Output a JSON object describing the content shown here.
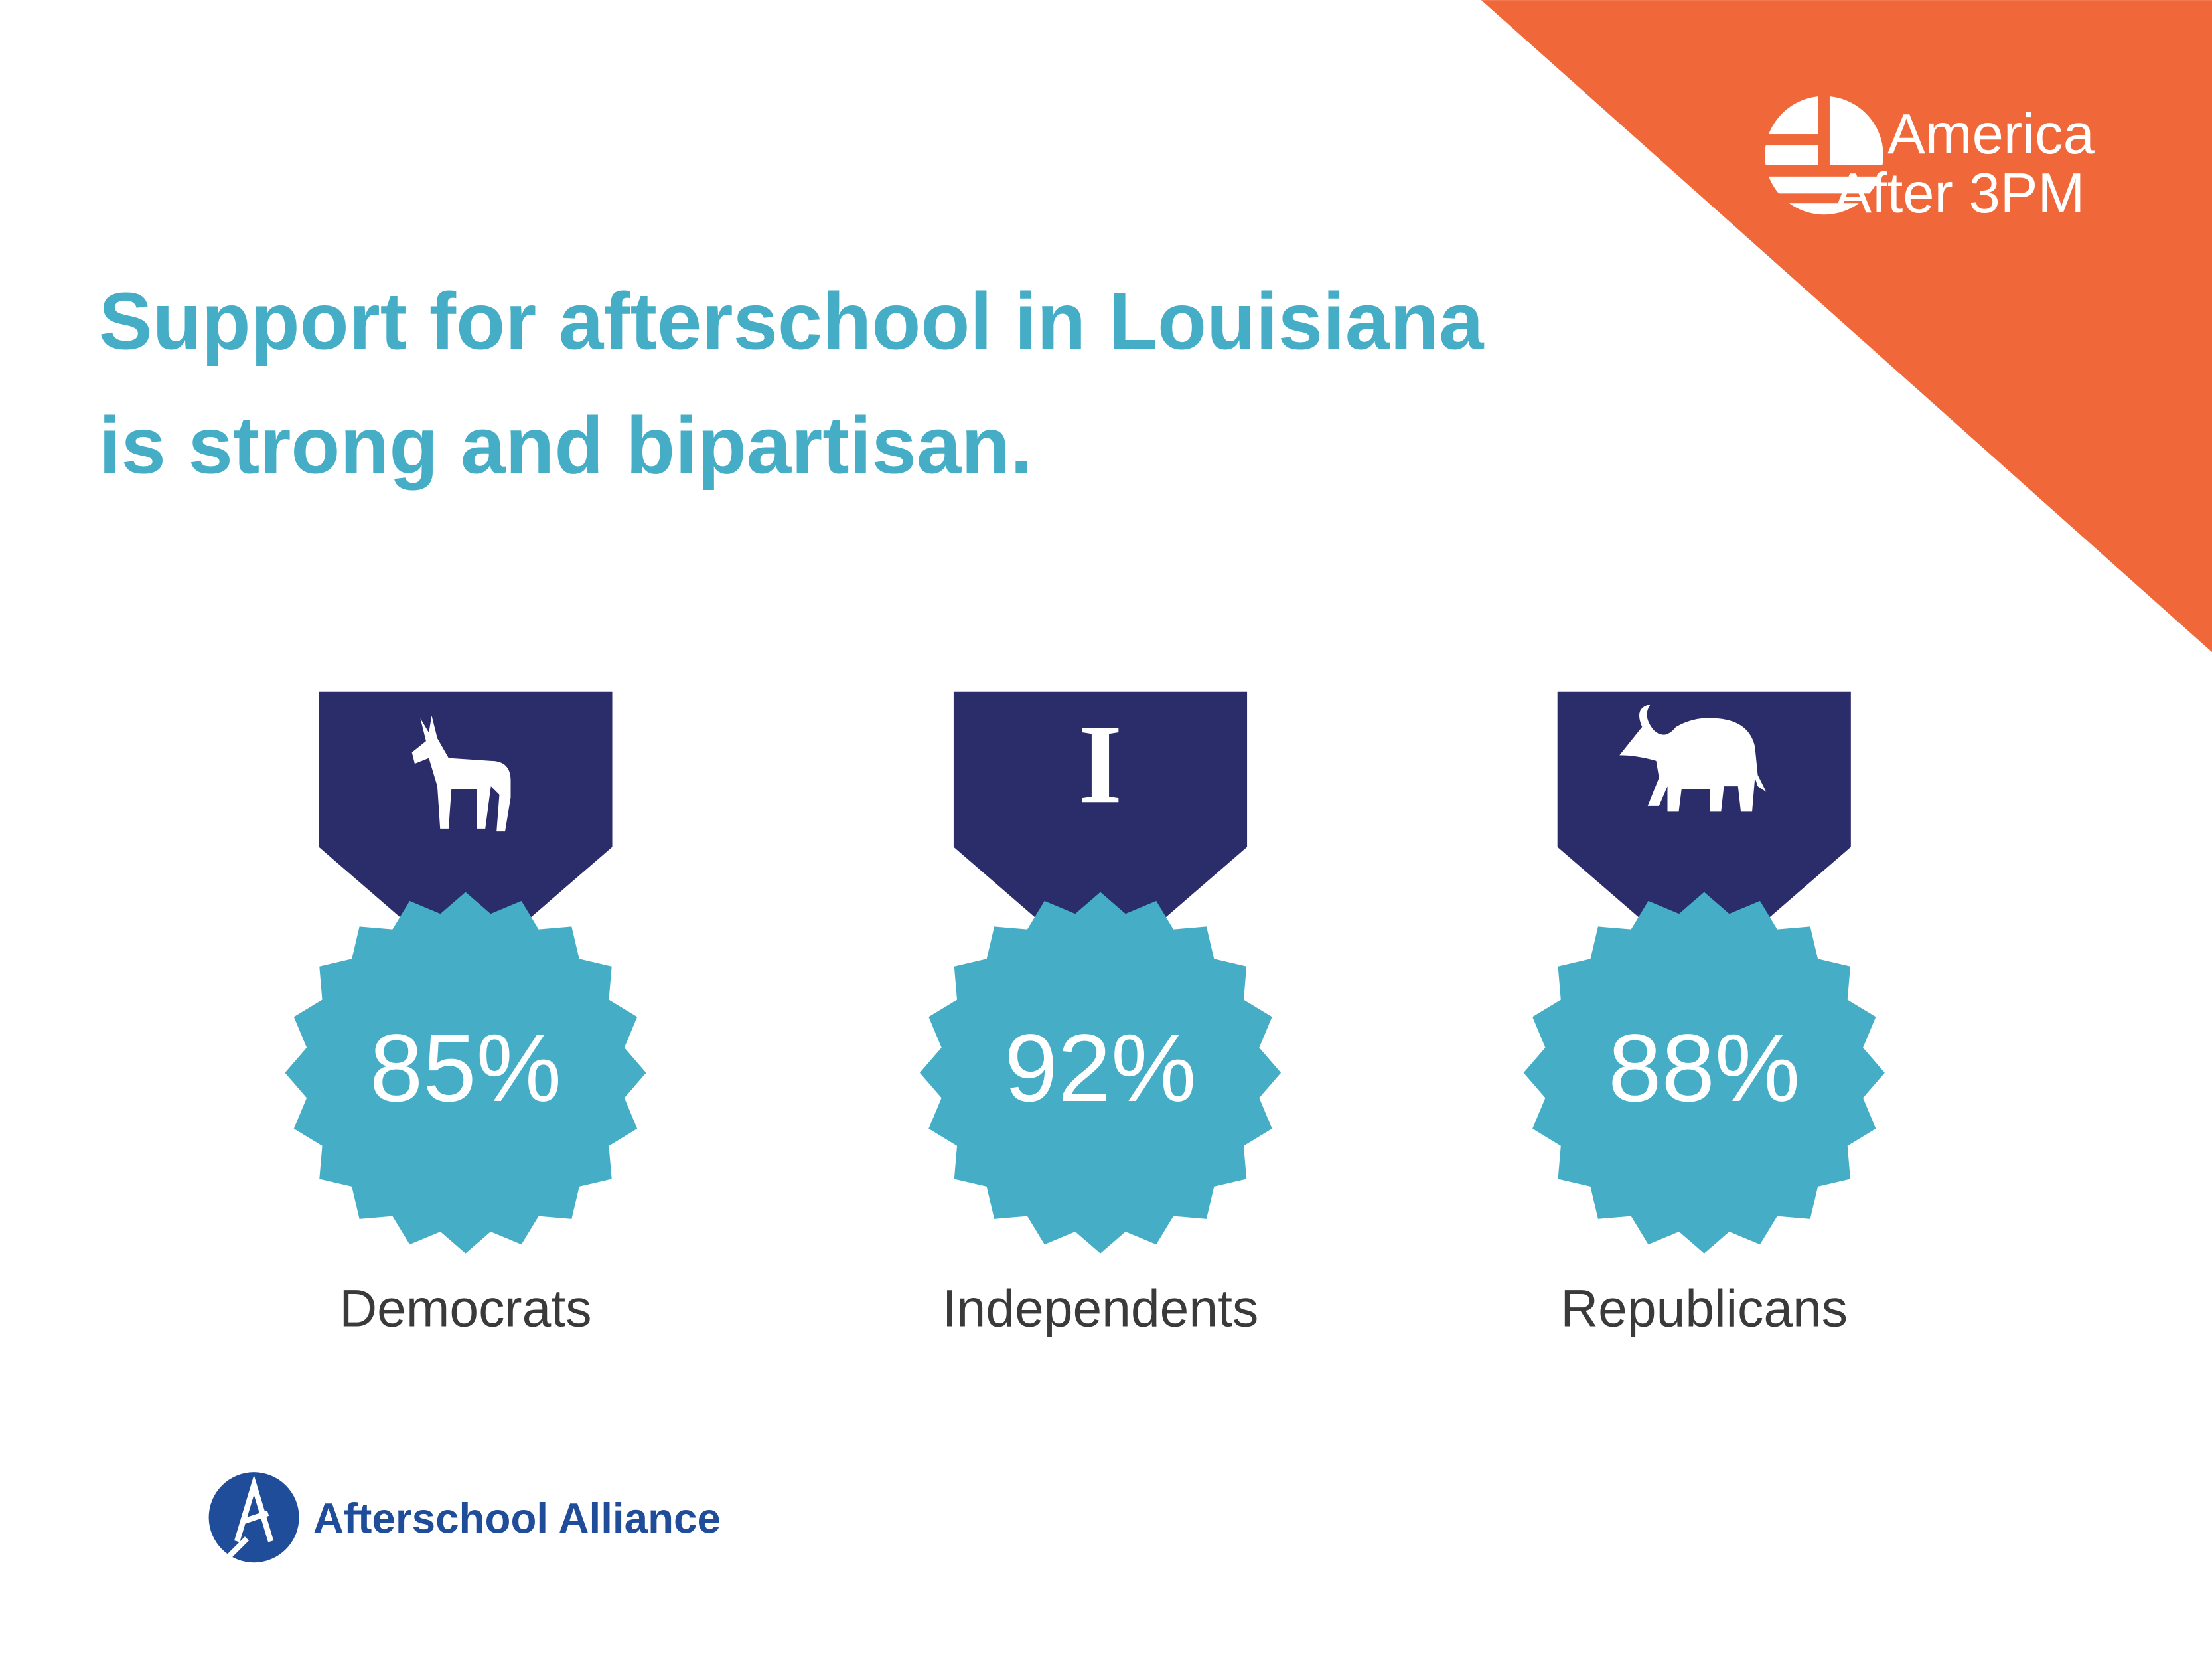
{
  "header": {
    "title_lines": [
      "Support for afterschool in Louisiana",
      "is strong and bipartisan."
    ]
  },
  "brand": {
    "lines": [
      "America",
      "After 3PM"
    ]
  },
  "badges": [
    {
      "value": "85%",
      "label": "Democrats",
      "icon": "donkey"
    },
    {
      "value": "92%",
      "label": "Independents",
      "icon": "I"
    },
    {
      "value": "88%",
      "label": "Republicans",
      "icon": "elephant"
    }
  ],
  "footer": {
    "organization": "Afterschool Alliance"
  }
}
